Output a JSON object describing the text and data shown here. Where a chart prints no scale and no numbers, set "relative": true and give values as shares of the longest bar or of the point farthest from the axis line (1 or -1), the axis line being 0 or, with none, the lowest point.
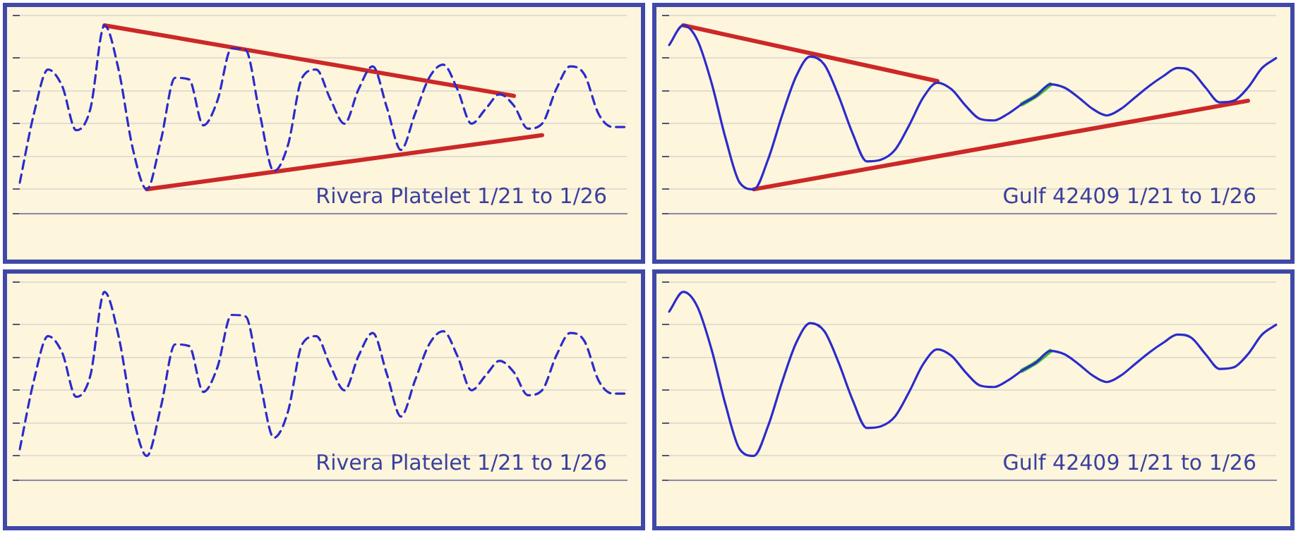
{
  "chart_data": [
    {
      "type": "line",
      "relative": true,
      "grid": "y",
      "line_style": "dashed",
      "marker": "none",
      "annotations": [
        "Rivera Platelet 1/21 to 1/26"
      ],
      "categories": [
        null,
        null,
        null,
        null,
        null,
        null,
        null,
        null,
        null,
        null,
        null,
        null,
        null,
        null,
        null,
        null,
        null,
        null,
        null,
        null,
        null,
        null,
        null,
        null,
        null,
        null,
        null,
        null,
        null,
        null,
        null,
        null,
        null,
        null,
        null,
        null,
        null,
        null,
        null,
        null,
        null,
        null,
        null,
        null
      ],
      "series": [
        {
          "color": "#2b2bcc",
          "values": [
            0.04,
            0.46,
            0.73,
            0.63,
            0.36,
            0.49,
            1,
            0.73,
            0.25,
            0,
            0.3,
            0.68,
            0.67,
            0.39,
            0.54,
            0.86,
            0.85,
            0.46,
            0.11,
            0.27,
            0.68,
            0.73,
            0.55,
            0.4,
            0.61,
            0.75,
            0.5,
            0.24,
            0.46,
            0.68,
            0.76,
            0.61,
            0.4,
            0.49,
            0.58,
            0.51,
            0.37,
            0.4,
            0.61,
            0.75,
            0.7,
            0.46,
            0.38,
            0.38
          ]
        },
        {
          "type": "line",
          "line_style": "solid",
          "color": "#cc2828",
          "values": [
            null,
            null,
            null,
            null,
            null,
            null,
            1,
            null,
            null,
            null,
            null,
            null,
            null,
            null,
            null,
            null,
            null,
            null,
            null,
            null,
            null,
            null,
            null,
            null,
            null,
            null,
            null,
            null,
            null,
            null,
            null,
            null,
            null,
            null,
            null,
            0.57,
            null,
            null,
            null,
            null,
            null,
            null,
            null,
            null
          ]
        },
        {
          "type": "line",
          "line_style": "solid",
          "color": "#cc2828",
          "values": [
            null,
            null,
            null,
            null,
            null,
            null,
            null,
            null,
            null,
            0,
            null,
            null,
            null,
            null,
            null,
            null,
            null,
            null,
            null,
            null,
            null,
            null,
            null,
            null,
            null,
            null,
            null,
            null,
            null,
            null,
            null,
            null,
            null,
            null,
            null,
            null,
            null,
            0.33,
            null,
            null,
            null,
            null,
            null,
            null
          ]
        }
      ]
    },
    {
      "type": "line",
      "relative": true,
      "grid": "y",
      "line_style": "solid",
      "marker": "none",
      "annotations": [
        "Gulf 42409 1/21 to 1/26"
      ],
      "categories": [
        null,
        null,
        null,
        null,
        null,
        null,
        null,
        null,
        null,
        null,
        null,
        null,
        null,
        null,
        null,
        null,
        null,
        null,
        null,
        null,
        null,
        null,
        null,
        null,
        null,
        null,
        null,
        null,
        null,
        null,
        null,
        null,
        null,
        null,
        null,
        null,
        null,
        null,
        null,
        null,
        null,
        null,
        null,
        null
      ],
      "series": [
        {
          "color": "#2b2bcc",
          "values": [
            0.88,
            1,
            0.91,
            0.65,
            0.31,
            0.04,
            0,
            0.18,
            0.45,
            0.69,
            0.81,
            0.76,
            0.57,
            0.34,
            0.17,
            0.18,
            0.24,
            0.39,
            0.56,
            0.65,
            0.61,
            0.51,
            0.43,
            0.42,
            0.46,
            0.52,
            0.57,
            0.64,
            0.62,
            0.56,
            0.49,
            0.45,
            0.49,
            0.56,
            0.63,
            0.69,
            0.74,
            0.72,
            0.62,
            0.53,
            0.54,
            0.62,
            0.74,
            0.8
          ]
        },
        {
          "type": "line",
          "color": "#44bb33",
          "values": [
            null,
            null,
            null,
            null,
            null,
            null,
            null,
            null,
            null,
            null,
            null,
            null,
            null,
            null,
            null,
            null,
            null,
            null,
            null,
            null,
            null,
            null,
            null,
            null,
            null,
            0.52,
            0.57,
            0.64,
            null,
            null,
            null,
            null,
            null,
            null,
            null,
            null,
            null,
            null,
            null,
            null,
            null,
            null,
            null,
            null
          ]
        },
        {
          "type": "line",
          "color": "#cc2828",
          "values": [
            null,
            1,
            null,
            null,
            null,
            null,
            null,
            null,
            null,
            null,
            null,
            null,
            null,
            null,
            null,
            null,
            null,
            null,
            null,
            0.66,
            null,
            null,
            null,
            null,
            null,
            null,
            null,
            null,
            null,
            null,
            null,
            null,
            null,
            null,
            null,
            null,
            null,
            null,
            null,
            null,
            null,
            null,
            null,
            null
          ]
        },
        {
          "type": "line",
          "color": "#cc2828",
          "values": [
            null,
            null,
            null,
            null,
            null,
            null,
            0,
            null,
            null,
            null,
            null,
            null,
            null,
            null,
            null,
            null,
            null,
            null,
            null,
            null,
            null,
            null,
            null,
            null,
            null,
            null,
            null,
            null,
            null,
            null,
            null,
            null,
            null,
            null,
            null,
            null,
            null,
            null,
            null,
            null,
            null,
            0.54,
            null,
            null
          ]
        }
      ]
    },
    {
      "type": "line",
      "relative": true,
      "grid": "y",
      "line_style": "dashed",
      "marker": "none",
      "annotations": [
        "Rivera Platelet 1/21 to 1/26"
      ],
      "categories": [
        null,
        null,
        null,
        null,
        null,
        null,
        null,
        null,
        null,
        null,
        null,
        null,
        null,
        null,
        null,
        null,
        null,
        null,
        null,
        null,
        null,
        null,
        null,
        null,
        null,
        null,
        null,
        null,
        null,
        null,
        null,
        null,
        null,
        null,
        null,
        null,
        null,
        null,
        null,
        null,
        null,
        null,
        null,
        null
      ],
      "series": [
        {
          "color": "#2b2bcc",
          "values": [
            0.04,
            0.46,
            0.73,
            0.63,
            0.36,
            0.49,
            1,
            0.73,
            0.25,
            0,
            0.3,
            0.68,
            0.67,
            0.39,
            0.54,
            0.86,
            0.85,
            0.46,
            0.11,
            0.27,
            0.68,
            0.73,
            0.55,
            0.4,
            0.61,
            0.75,
            0.5,
            0.24,
            0.46,
            0.68,
            0.76,
            0.61,
            0.4,
            0.49,
            0.58,
            0.51,
            0.37,
            0.4,
            0.61,
            0.75,
            0.7,
            0.46,
            0.38,
            0.38
          ]
        }
      ]
    },
    {
      "type": "line",
      "relative": true,
      "grid": "y",
      "line_style": "solid",
      "marker": "none",
      "annotations": [
        "Gulf 42409 1/21 to 1/26"
      ],
      "categories": [
        null,
        null,
        null,
        null,
        null,
        null,
        null,
        null,
        null,
        null,
        null,
        null,
        null,
        null,
        null,
        null,
        null,
        null,
        null,
        null,
        null,
        null,
        null,
        null,
        null,
        null,
        null,
        null,
        null,
        null,
        null,
        null,
        null,
        null,
        null,
        null,
        null,
        null,
        null,
        null,
        null,
        null,
        null,
        null
      ],
      "series": [
        {
          "color": "#2b2bcc",
          "values": [
            0.88,
            1,
            0.91,
            0.65,
            0.31,
            0.04,
            0,
            0.18,
            0.45,
            0.69,
            0.81,
            0.76,
            0.57,
            0.34,
            0.17,
            0.18,
            0.24,
            0.39,
            0.56,
            0.65,
            0.61,
            0.51,
            0.43,
            0.42,
            0.46,
            0.52,
            0.57,
            0.64,
            0.62,
            0.56,
            0.49,
            0.45,
            0.49,
            0.56,
            0.63,
            0.69,
            0.74,
            0.72,
            0.62,
            0.53,
            0.54,
            0.62,
            0.74,
            0.8
          ]
        },
        {
          "type": "line",
          "color": "#44bb33",
          "values": [
            null,
            null,
            null,
            null,
            null,
            null,
            null,
            null,
            null,
            null,
            null,
            null,
            null,
            null,
            null,
            null,
            null,
            null,
            null,
            null,
            null,
            null,
            null,
            null,
            null,
            0.52,
            0.57,
            0.64,
            null,
            null,
            null,
            null,
            null,
            null,
            null,
            null,
            null,
            null,
            null,
            null,
            null,
            null,
            null,
            null
          ]
        }
      ]
    }
  ]
}
